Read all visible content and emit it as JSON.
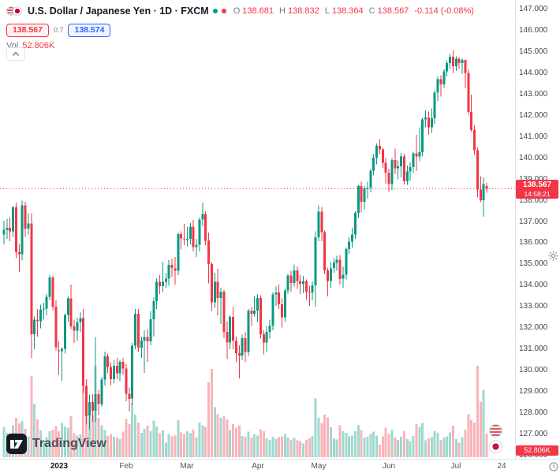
{
  "header": {
    "title": "U.S. Dollar / Japanese Yen · 1D · FXCM",
    "ohlc": {
      "o_label": "O",
      "o": "138.681",
      "h_label": "H",
      "h": "138.832",
      "l_label": "L",
      "l": "138.364",
      "c_label": "C",
      "c": "138.567",
      "change": "-0.114 (-0.08%)"
    },
    "sell_price": "138.567",
    "spread": "0.7",
    "buy_price": "138.574",
    "vol_label": "Vol",
    "vol_value": "52.806K"
  },
  "axis_badges": {
    "last_price": "138.567",
    "countdown": "14:58:21",
    "volume": "52.806K"
  },
  "footer": {
    "logo_text": "TradingView"
  },
  "chart_data": {
    "type": "candlestick",
    "symbol": "USDJPY",
    "description": "U.S. Dollar / Japanese Yen",
    "interval": "1D",
    "exchange": "FXCM",
    "last_price": 138.567,
    "countdown": "14:58:21",
    "volume_display": "52.806K",
    "y_axis": {
      "min": 126,
      "max": 147,
      "tick_step": 1,
      "format": "3dp"
    },
    "x_ticks": [
      {
        "label": "2023",
        "i": 18,
        "year": true
      },
      {
        "label": "Feb",
        "i": 40
      },
      {
        "label": "Mar",
        "i": 60
      },
      {
        "label": "Apr",
        "i": 83
      },
      {
        "label": "May",
        "i": 103
      },
      {
        "label": "Jun",
        "i": 126
      },
      {
        "label": "Jul",
        "i": 148
      },
      {
        "label": "24",
        "i": 163
      }
    ],
    "colors": {
      "up": "#089981",
      "down": "#f23645",
      "vol_up": "rgba(8,153,129,0.38)",
      "vol_down": "rgba(242,54,69,0.38)",
      "last_line": "#f23645"
    },
    "candles": [
      [
        136.4,
        137.05,
        135.95,
        136.62,
        68
      ],
      [
        136.62,
        137.15,
        136.2,
        136.72,
        55
      ],
      [
        136.72,
        137.2,
        136.1,
        136.55,
        49
      ],
      [
        136.55,
        137.75,
        136.3,
        137.68,
        72
      ],
      [
        137.68,
        137.9,
        135.3,
        135.58,
        88
      ],
      [
        135.58,
        135.95,
        134.65,
        135.48,
        76
      ],
      [
        135.48,
        138.0,
        135.2,
        137.78,
        81
      ],
      [
        137.78,
        137.95,
        136.3,
        136.68,
        64
      ],
      [
        136.68,
        137.4,
        136.4,
        136.92,
        47
      ],
      [
        136.92,
        137.4,
        130.58,
        131.72,
        182
      ],
      [
        131.72,
        132.55,
        131.0,
        132.4,
        120
      ],
      [
        132.4,
        132.9,
        131.6,
        132.32,
        85
      ],
      [
        132.32,
        133.1,
        132.0,
        132.88,
        60
      ],
      [
        132.88,
        133.2,
        132.4,
        132.92,
        38
      ],
      [
        132.92,
        133.6,
        132.6,
        133.48,
        45
      ],
      [
        133.48,
        134.5,
        133.3,
        134.38,
        58
      ],
      [
        134.38,
        134.45,
        132.85,
        133.02,
        62
      ],
      [
        133.02,
        133.3,
        130.95,
        131.1,
        70
      ],
      [
        130.95,
        131.4,
        129.8,
        130.92,
        58
      ],
      [
        130.92,
        131.1,
        129.52,
        131.02,
        77
      ],
      [
        131.02,
        132.7,
        130.8,
        132.62,
        69
      ],
      [
        132.62,
        133.5,
        132.3,
        133.4,
        66
      ],
      [
        133.4,
        134.05,
        131.95,
        132.08,
        92
      ],
      [
        132.08,
        132.4,
        131.3,
        131.88,
        54
      ],
      [
        131.88,
        132.5,
        131.4,
        132.28,
        49
      ],
      [
        132.28,
        132.75,
        131.8,
        132.48,
        51
      ],
      [
        132.48,
        132.9,
        128.95,
        129.28,
        188
      ],
      [
        129.28,
        129.6,
        127.46,
        127.88,
        152
      ],
      [
        127.88,
        128.87,
        127.23,
        128.52,
        118
      ],
      [
        128.52,
        128.9,
        127.6,
        128.12,
        95
      ],
      [
        128.12,
        131.58,
        127.57,
        128.9,
        205
      ],
      [
        128.9,
        129.1,
        127.9,
        128.42,
        88
      ],
      [
        128.42,
        129.7,
        128.3,
        129.58,
        72
      ],
      [
        129.58,
        130.9,
        129.3,
        130.68,
        61
      ],
      [
        130.68,
        130.8,
        129.9,
        130.18,
        48
      ],
      [
        130.18,
        130.4,
        129.3,
        129.6,
        52
      ],
      [
        129.6,
        130.5,
        129.4,
        130.22,
        46
      ],
      [
        130.22,
        130.6,
        129.6,
        129.88,
        44
      ],
      [
        129.88,
        130.5,
        129.5,
        130.42,
        41
      ],
      [
        130.42,
        130.6,
        129.8,
        130.1,
        57
      ],
      [
        130.1,
        130.3,
        128.55,
        128.92,
        86
      ],
      [
        128.92,
        129.2,
        128.08,
        128.68,
        74
      ],
      [
        128.68,
        131.3,
        128.4,
        131.18,
        122
      ],
      [
        131.18,
        132.9,
        131.0,
        132.68,
        95
      ],
      [
        132.68,
        132.9,
        130.9,
        131.08,
        78
      ],
      [
        131.08,
        131.6,
        130.6,
        131.42,
        55
      ],
      [
        131.42,
        131.9,
        129.9,
        131.58,
        64
      ],
      [
        131.58,
        131.95,
        130.42,
        131.38,
        71
      ],
      [
        131.38,
        132.8,
        131.2,
        132.42,
        58
      ],
      [
        132.42,
        133.45,
        131.6,
        133.28,
        82
      ],
      [
        133.28,
        134.35,
        132.9,
        134.18,
        69
      ],
      [
        134.18,
        134.5,
        133.6,
        133.98,
        54
      ],
      [
        133.98,
        135.1,
        133.7,
        134.18,
        60
      ],
      [
        134.18,
        134.6,
        133.9,
        134.32,
        33
      ],
      [
        134.32,
        135.2,
        134.0,
        134.98,
        51
      ],
      [
        134.98,
        135.25,
        134.4,
        134.82,
        47
      ],
      [
        134.82,
        135.35,
        134.05,
        134.7,
        49
      ],
      [
        134.7,
        136.5,
        134.5,
        136.42,
        83
      ],
      [
        136.42,
        136.55,
        135.7,
        136.22,
        56
      ],
      [
        136.22,
        136.9,
        135.9,
        136.18,
        52
      ],
      [
        136.18,
        136.75,
        135.85,
        136.2,
        58
      ],
      [
        136.2,
        136.95,
        135.95,
        136.78,
        54
      ],
      [
        136.78,
        137.1,
        135.6,
        135.82,
        62
      ],
      [
        135.82,
        136.2,
        135.35,
        135.92,
        44
      ],
      [
        135.92,
        137.2,
        135.6,
        137.12,
        78
      ],
      [
        137.12,
        137.91,
        136.8,
        137.38,
        72
      ],
      [
        137.38,
        137.5,
        135.9,
        136.12,
        68
      ],
      [
        136.12,
        136.5,
        134.1,
        135.02,
        168
      ],
      [
        135.02,
        135.1,
        132.8,
        133.22,
        198
      ],
      [
        133.22,
        134.6,
        132.95,
        134.18,
        112
      ],
      [
        134.18,
        134.8,
        132.6,
        133.42,
        96
      ],
      [
        133.42,
        133.9,
        132.2,
        133.72,
        88
      ],
      [
        133.72,
        133.8,
        131.55,
        131.82,
        92
      ],
      [
        131.82,
        132.3,
        130.55,
        131.32,
        85
      ],
      [
        131.32,
        132.6,
        131.0,
        132.52,
        61
      ],
      [
        132.52,
        133.0,
        131.0,
        131.42,
        74
      ],
      [
        131.42,
        131.6,
        130.4,
        130.82,
        66
      ],
      [
        130.82,
        131.2,
        129.64,
        130.72,
        72
      ],
      [
        130.72,
        131.7,
        130.5,
        131.52,
        48
      ],
      [
        131.52,
        131.8,
        130.42,
        130.88,
        46
      ],
      [
        130.88,
        132.9,
        130.7,
        132.82,
        57
      ],
      [
        132.82,
        133.0,
        132.1,
        132.68,
        44
      ],
      [
        132.68,
        133.5,
        132.55,
        132.82,
        51
      ],
      [
        132.82,
        133.6,
        132.3,
        133.42,
        49
      ],
      [
        133.42,
        133.55,
        131.5,
        131.72,
        63
      ],
      [
        131.72,
        131.9,
        130.77,
        131.32,
        58
      ],
      [
        131.32,
        132.1,
        130.9,
        131.82,
        42
      ],
      [
        131.82,
        132.4,
        131.5,
        132.12,
        39
      ],
      [
        132.12,
        133.7,
        131.9,
        133.58,
        46
      ],
      [
        133.58,
        133.95,
        133.05,
        133.68,
        41
      ],
      [
        133.68,
        134.05,
        132.9,
        133.12,
        45
      ],
      [
        133.12,
        133.4,
        132.02,
        132.52,
        47
      ],
      [
        132.52,
        133.85,
        132.3,
        133.78,
        52
      ],
      [
        133.78,
        134.55,
        133.6,
        134.48,
        44
      ],
      [
        134.48,
        134.7,
        133.7,
        134.12,
        40
      ],
      [
        134.12,
        135.0,
        133.95,
        134.72,
        43
      ],
      [
        134.72,
        134.9,
        133.85,
        134.22,
        38
      ],
      [
        134.22,
        134.5,
        133.6,
        134.08,
        36
      ],
      [
        134.08,
        134.45,
        133.65,
        134.22,
        31
      ],
      [
        134.22,
        134.3,
        133.35,
        133.72,
        39
      ],
      [
        133.72,
        134.0,
        133.05,
        133.68,
        42
      ],
      [
        133.68,
        134.2,
        133.3,
        134.02,
        48
      ],
      [
        134.02,
        136.55,
        133.02,
        136.28,
        132
      ],
      [
        136.28,
        137.77,
        136.1,
        137.48,
        88
      ],
      [
        137.48,
        137.7,
        136.1,
        136.52,
        76
      ],
      [
        136.52,
        136.6,
        134.55,
        134.72,
        95
      ],
      [
        134.72,
        134.85,
        133.5,
        134.22,
        89
      ],
      [
        134.22,
        135.1,
        133.9,
        134.82,
        67
      ],
      [
        134.82,
        135.3,
        134.6,
        135.08,
        42
      ],
      [
        135.08,
        135.4,
        134.7,
        135.22,
        40
      ],
      [
        135.22,
        135.45,
        134.05,
        134.32,
        72
      ],
      [
        134.32,
        134.9,
        133.9,
        134.52,
        58
      ],
      [
        134.52,
        135.8,
        134.3,
        135.72,
        55
      ],
      [
        135.72,
        136.3,
        135.5,
        136.08,
        47
      ],
      [
        136.08,
        136.7,
        135.8,
        136.4,
        49
      ],
      [
        136.4,
        137.5,
        136.2,
        137.42,
        58
      ],
      [
        137.42,
        138.75,
        137.2,
        138.68,
        72
      ],
      [
        138.68,
        138.9,
        137.45,
        137.95,
        61
      ],
      [
        137.95,
        138.7,
        137.6,
        138.58,
        44
      ],
      [
        138.58,
        138.9,
        138.1,
        138.62,
        46
      ],
      [
        138.62,
        139.5,
        138.4,
        139.42,
        52
      ],
      [
        139.42,
        140.2,
        139.2,
        140.02,
        57
      ],
      [
        140.02,
        140.7,
        139.7,
        140.58,
        49
      ],
      [
        140.58,
        140.9,
        140.2,
        140.42,
        28
      ],
      [
        140.42,
        140.5,
        139.55,
        139.78,
        47
      ],
      [
        139.78,
        140.0,
        138.8,
        139.32,
        66
      ],
      [
        139.32,
        139.5,
        138.42,
        138.78,
        52
      ],
      [
        138.78,
        140.0,
        138.5,
        139.92,
        61
      ],
      [
        139.92,
        140.45,
        139.25,
        139.52,
        44
      ],
      [
        139.52,
        139.9,
        139.0,
        139.62,
        39
      ],
      [
        139.62,
        140.25,
        139.1,
        140.08,
        46
      ],
      [
        140.08,
        140.2,
        138.77,
        138.92,
        58
      ],
      [
        138.92,
        139.65,
        138.75,
        139.38,
        41
      ],
      [
        139.38,
        139.8,
        138.95,
        139.58,
        36
      ],
      [
        139.58,
        140.3,
        139.3,
        140.22,
        48
      ],
      [
        140.22,
        141.1,
        139.4,
        140.08,
        74
      ],
      [
        140.08,
        141.45,
        139.85,
        140.28,
        68
      ],
      [
        140.28,
        141.9,
        140.1,
        141.82,
        77
      ],
      [
        141.82,
        142.25,
        141.45,
        141.92,
        38
      ],
      [
        141.92,
        142.2,
        141.1,
        141.45,
        42
      ],
      [
        141.45,
        142.35,
        141.2,
        141.88,
        45
      ],
      [
        141.88,
        143.2,
        141.6,
        143.08,
        58
      ],
      [
        143.08,
        143.85,
        142.7,
        143.72,
        55
      ],
      [
        143.72,
        143.9,
        142.9,
        143.48,
        39
      ],
      [
        143.48,
        144.2,
        143.3,
        144.08,
        44
      ],
      [
        144.08,
        144.6,
        143.85,
        144.48,
        47
      ],
      [
        144.48,
        144.9,
        144.2,
        144.78,
        56
      ],
      [
        144.78,
        145.07,
        144.0,
        144.32,
        71
      ],
      [
        144.32,
        144.8,
        144.1,
        144.68,
        41
      ],
      [
        144.68,
        144.75,
        144.2,
        144.48,
        33
      ],
      [
        144.48,
        144.7,
        143.95,
        144.62,
        45
      ],
      [
        144.62,
        144.65,
        143.3,
        144.02,
        62
      ],
      [
        144.02,
        144.2,
        142.05,
        142.18,
        96
      ],
      [
        142.18,
        143.0,
        141.25,
        141.32,
        84
      ],
      [
        141.32,
        141.55,
        140.15,
        140.38,
        78
      ],
      [
        140.38,
        140.5,
        138.15,
        138.52,
        205
      ],
      [
        138.52,
        139.15,
        137.92,
        138.02,
        124
      ],
      [
        138.02,
        139.1,
        137.25,
        138.78,
        151
      ],
      [
        138.681,
        138.832,
        138.364,
        138.567,
        52.8
      ]
    ]
  }
}
